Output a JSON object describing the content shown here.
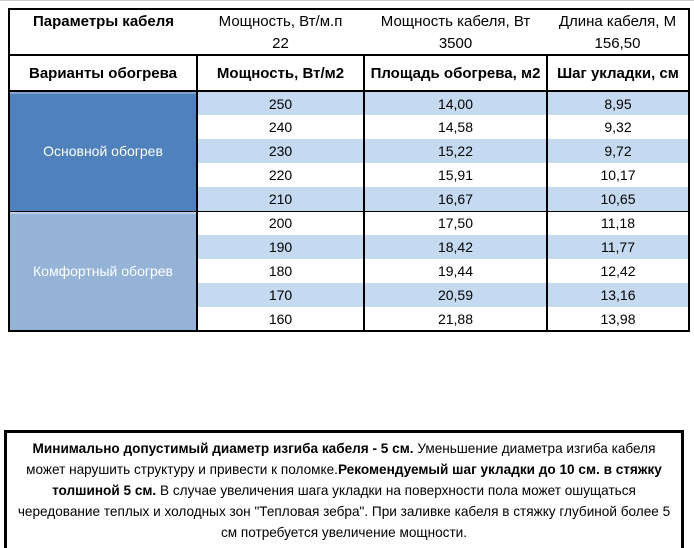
{
  "cable_params": {
    "headers": [
      "Параметры кабеля",
      "Мощность, Вт/м.п",
      "Мощность кабеля, Вт",
      "Длина кабеля, М"
    ],
    "values": [
      "",
      "22",
      "3500",
      "156,50"
    ]
  },
  "heating_table": {
    "headers": [
      "Варианты обогрева",
      "Мощность, Вт/м2",
      "Площадь обогрева, м2",
      "Шаг укладки, см"
    ],
    "sections": [
      {
        "label": "Основной обогрев",
        "rows": [
          [
            "250",
            "14,00",
            "8,95"
          ],
          [
            "240",
            "14,58",
            "9,32"
          ],
          [
            "230",
            "15,22",
            "9,72"
          ],
          [
            "220",
            "15,91",
            "10,17"
          ],
          [
            "210",
            "16,67",
            "10,65"
          ]
        ]
      },
      {
        "label": "Комфортный обогрев",
        "rows": [
          [
            "200",
            "17,50",
            "11,18"
          ],
          [
            "190",
            "18,42",
            "11,77"
          ],
          [
            "180",
            "19,44",
            "12,42"
          ],
          [
            "170",
            "20,59",
            "13,16"
          ],
          [
            "160",
            "21,88",
            "13,98"
          ]
        ]
      }
    ]
  },
  "note": {
    "segments": [
      {
        "bold": true,
        "text": "Минимально допустимый диаметр изгиба кабеля - 5 см. "
      },
      {
        "bold": false,
        "text": " Уменьшение диаметра изгиба кабеля может нарушить структуру и привести к поломке."
      },
      {
        "bold": true,
        "text": "Рекомендуемый шаг укладки до 10 см. в стяжку толшиной 5 см."
      },
      {
        "bold": false,
        "text": " В  случае увеличения шага укладки на поверхности пола может ошущаться чередование теплых и холодных зон \"Тепловая зебра\". При заливке кабеля в стяжку глубиной более 5 см потребуется увеличение мощности."
      }
    ]
  },
  "colors": {
    "main_heating_bg": "#4f81bd",
    "comfort_heating_bg": "#95b3d7",
    "banded_row_bg": "#c5d9f0",
    "border": "#000000"
  }
}
